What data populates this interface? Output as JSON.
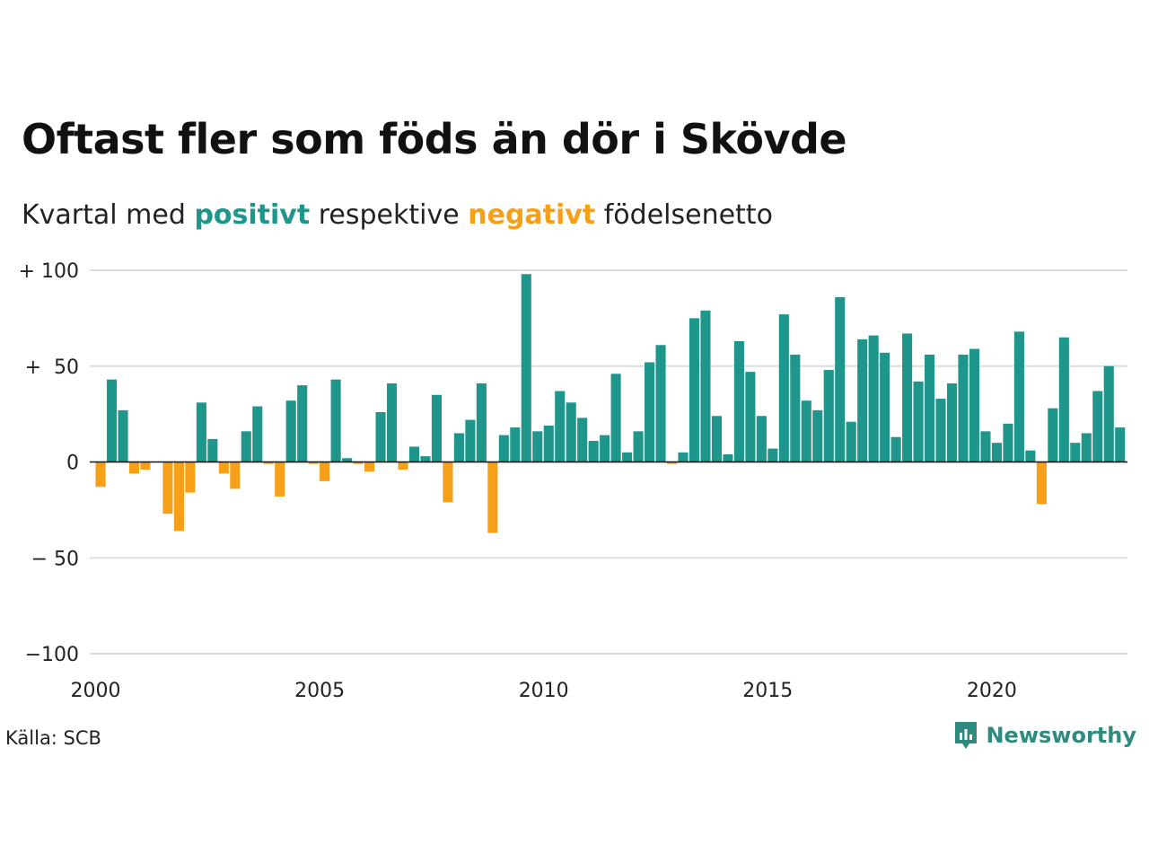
{
  "header": {
    "title": "Oftast fler som föds än dör i Skövde",
    "subtitle_pre": "Kvartal med",
    "subtitle_pos": "positivt",
    "subtitle_mid": "respektive",
    "subtitle_neg": "negativt",
    "subtitle_post": "födelsenetto"
  },
  "footer": {
    "source": "Källa: SCB",
    "brand": "Newsworthy",
    "brand_icon": "chart-speech-bubble-icon"
  },
  "colors": {
    "positive": "#1f968b",
    "negative": "#f6a01a",
    "grid": "#dddddd",
    "brand": "#2e8b7e"
  },
  "chart_data": {
    "type": "bar",
    "x_start": "2000 Q1",
    "frequency": "quarterly",
    "x_tick_labels": [
      "2000",
      "2005",
      "2010",
      "2015",
      "2020"
    ],
    "y_tick_labels": [
      "+ 100",
      "+  50",
      "0",
      "− 50",
      "−100"
    ],
    "y_ticks": [
      100,
      50,
      0,
      -50,
      -100
    ],
    "ylim": [
      -100,
      100
    ],
    "grid": true,
    "values": [
      -13,
      43,
      27,
      -6,
      -4,
      0,
      -27,
      -36,
      -16,
      31,
      12,
      -6,
      -14,
      16,
      29,
      -1,
      -18,
      32,
      40,
      -1,
      -10,
      43,
      2,
      -1,
      -5,
      26,
      41,
      -4,
      8,
      3,
      35,
      -21,
      15,
      22,
      41,
      -37,
      14,
      18,
      98,
      16,
      19,
      37,
      31,
      23,
      11,
      14,
      46,
      5,
      16,
      52,
      61,
      -1,
      5,
      75,
      79,
      24,
      4,
      63,
      47,
      24,
      7,
      77,
      56,
      32,
      27,
      48,
      86,
      21,
      64,
      66,
      57,
      13,
      67,
      42,
      56,
      33,
      41,
      56,
      59,
      16,
      10,
      20,
      68,
      6,
      -22,
      28,
      65,
      10,
      15,
      37,
      50,
      18
    ]
  }
}
